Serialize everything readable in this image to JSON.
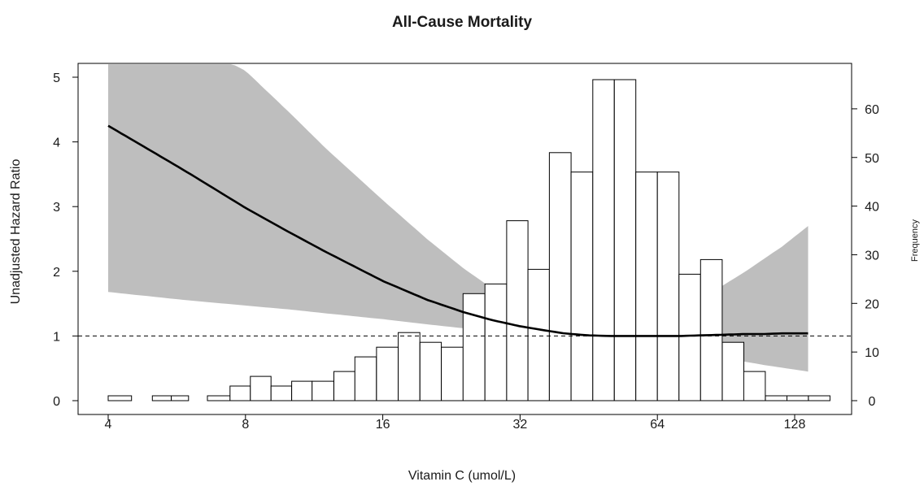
{
  "chart_data": {
    "type": "bar",
    "title": "All-Cause Mortality",
    "xlabel": "Vitamin C (umol/L)",
    "ylabel": "Unadjusted Hazard Ratio",
    "y2label": "Frequency",
    "x_scale": "log2",
    "xlim": [
      4,
      128
    ],
    "xticks": [
      4,
      8,
      16,
      32,
      64,
      128
    ],
    "ylim": [
      0,
      5
    ],
    "yticks": [
      0,
      1,
      2,
      3,
      4,
      5
    ],
    "y2lim": [
      0,
      60
    ],
    "y2ticks": [
      0,
      10,
      20,
      30,
      40,
      50,
      60
    ],
    "reference_line": 1,
    "histogram": {
      "name": "Frequency",
      "bin_edges": [
        4,
        4.5,
        5,
        5.5,
        6,
        6.6,
        7.4,
        8.2,
        9.1,
        10.1,
        11.2,
        12.5,
        13.9,
        15.5,
        17.3,
        19.3,
        21.5,
        24,
        26.8,
        29.9,
        33.3,
        37.1,
        41.4,
        46.2,
        51.5,
        57.4,
        64,
        71.4,
        79.6,
        88.8,
        99,
        110.4,
        123.1,
        137.2,
        153
      ],
      "counts": [
        1,
        0,
        1,
        1,
        0,
        1,
        3,
        5,
        3,
        4,
        4,
        6,
        9,
        11,
        14,
        12,
        11,
        22,
        24,
        37,
        27,
        51,
        47,
        66,
        66,
        47,
        47,
        26,
        29,
        12,
        6,
        1,
        1,
        1
      ]
    },
    "series": [
      {
        "name": "Hazard Ratio",
        "x": [
          4,
          5,
          6,
          8,
          10,
          12,
          16,
          20,
          24,
          28,
          32,
          36,
          40,
          45,
          50,
          56,
          64,
          72,
          80,
          90,
          100,
          110,
          120,
          137
        ],
        "y": [
          4.25,
          3.85,
          3.52,
          2.98,
          2.6,
          2.3,
          1.85,
          1.56,
          1.37,
          1.24,
          1.15,
          1.09,
          1.04,
          1.01,
          1.0,
          1.0,
          1.0,
          1.0,
          1.01,
          1.02,
          1.03,
          1.03,
          1.04,
          1.04
        ]
      },
      {
        "name": "Upper CI",
        "x": [
          4,
          7.5,
          8,
          10,
          12,
          16,
          20,
          24,
          28,
          32,
          36,
          40,
          45,
          50,
          56,
          64,
          72,
          80,
          90,
          100,
          110,
          120,
          137
        ],
        "y": [
          5.2,
          5.2,
          5.1,
          4.45,
          3.9,
          3.1,
          2.5,
          2.05,
          1.72,
          1.48,
          1.3,
          1.15,
          1.04,
          1.0,
          1.05,
          1.2,
          1.38,
          1.58,
          1.8,
          2.0,
          2.2,
          2.38,
          2.7
        ]
      },
      {
        "name": "Lower CI",
        "x": [
          4,
          6,
          8,
          10,
          12,
          16,
          20,
          24,
          28,
          32,
          36,
          40,
          45,
          50,
          56,
          64,
          72,
          80,
          90,
          100,
          110,
          120,
          137
        ],
        "y": [
          1.68,
          1.55,
          1.47,
          1.41,
          1.35,
          1.26,
          1.18,
          1.12,
          1.08,
          1.05,
          1.03,
          1.02,
          1.01,
          1.0,
          0.95,
          0.87,
          0.8,
          0.73,
          0.66,
          0.6,
          0.55,
          0.51,
          0.45
        ]
      }
    ],
    "colors": {
      "ci_band": "#bebebe",
      "hr_line": "#000000",
      "bars": "#ffffff",
      "bar_stroke": "#000000"
    }
  }
}
